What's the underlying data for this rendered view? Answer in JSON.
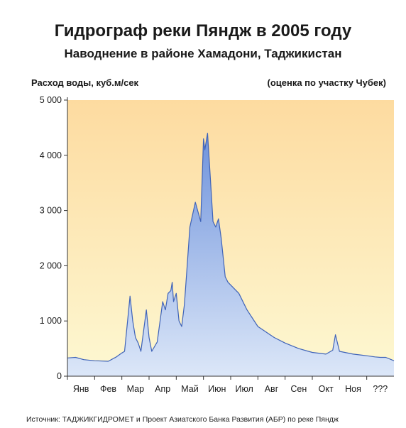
{
  "chart_data": {
    "type": "area",
    "title": "Гидрограф реки Пяндж в 2005 году",
    "subtitle": "Наводнение в районе Хамадони, Таджикистан",
    "ylabel": "Расход воды, куб.м/сек",
    "note": "(оценка по участку Чубек)",
    "source": "Источник: ТАДЖИКГИДРОМЕТ и Проект Азиатского Банка Развития (АБР) по реке Пяндж",
    "ylim": [
      0,
      5000
    ],
    "xlim": [
      0,
      12
    ],
    "y_ticks": [
      0,
      1000,
      2000,
      3000,
      4000,
      5000
    ],
    "y_tick_labels": [
      "0",
      "1 000",
      "2 000",
      "3 000",
      "4 000",
      "5 000"
    ],
    "categories": [
      "Янв",
      "Фев",
      "Мар",
      "Апр",
      "Май",
      "Июн",
      "Июл",
      "Авг",
      "Сен",
      "Окт",
      "Ноя",
      "???"
    ],
    "grid": false,
    "legend": "none",
    "colors": {
      "fill_top": "#6f93dc",
      "fill_bottom": "#dce7f8",
      "line": "#3f63b8",
      "bg_top": "#fddba0",
      "bg_bottom": "#fdf8d2"
    },
    "series": [
      {
        "x": [
          0,
          0.3,
          0.6,
          1.0,
          1.5,
          1.8,
          2.0,
          2.1,
          2.3,
          2.4,
          2.5,
          2.6,
          2.7,
          2.9,
          3.0,
          3.1,
          3.3,
          3.5,
          3.6,
          3.7,
          3.8,
          3.85,
          3.9,
          4.0,
          4.1,
          4.2,
          4.3,
          4.4,
          4.5,
          4.7,
          4.9,
          5.0,
          5.05,
          5.15,
          5.25,
          5.35,
          5.45,
          5.55,
          5.65,
          5.8,
          5.9,
          6.0,
          6.3,
          6.6,
          7.0,
          7.3,
          7.6,
          8.0,
          8.5,
          9.0,
          9.5,
          9.75,
          9.85,
          10.0,
          10.5,
          11.0,
          11.3,
          11.5,
          11.7,
          12.0
        ],
        "y": [
          330,
          340,
          300,
          280,
          270,
          350,
          420,
          450,
          1450,
          1000,
          700,
          600,
          450,
          1200,
          700,
          450,
          620,
          1350,
          1200,
          1500,
          1550,
          1700,
          1350,
          1500,
          1000,
          900,
          1300,
          2000,
          2700,
          3150,
          2800,
          4300,
          4100,
          4400,
          3600,
          2800,
          2700,
          2850,
          2500,
          1800,
          1700,
          1650,
          1500,
          1200,
          900,
          800,
          700,
          600,
          500,
          430,
          400,
          470,
          750,
          450,
          400,
          370,
          350,
          340,
          340,
          280
        ]
      }
    ]
  }
}
